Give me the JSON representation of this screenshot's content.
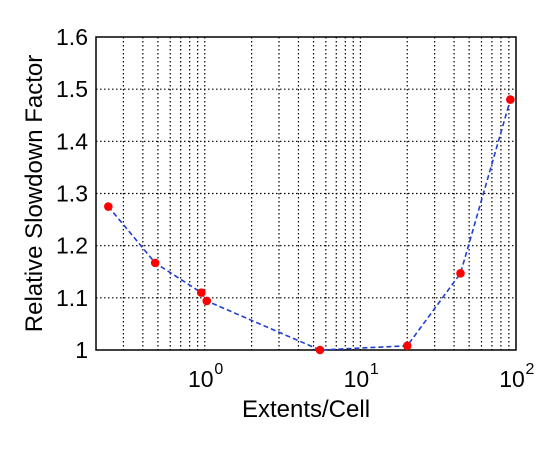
{
  "chart_data": {
    "type": "line",
    "xscale": "log",
    "xlim": [
      0.2,
      100
    ],
    "ylim": [
      1,
      1.6
    ],
    "grid": true,
    "xlabel": "Extents/Cell",
    "ylabel": "Relative Slowdown Factor",
    "xticks": [
      {
        "value": 1,
        "label": "10",
        "exp": "0"
      },
      {
        "value": 10,
        "label": "10",
        "exp": "1"
      },
      {
        "value": 100,
        "label": "10",
        "exp": "2"
      }
    ],
    "yticks": [
      "1",
      "1.1",
      "1.2",
      "1.3",
      "1.4",
      "1.5",
      "1.6"
    ],
    "series": [
      {
        "x": [
          0.24,
          0.48,
          0.95,
          1.03,
          5.5,
          20,
          44,
          92
        ],
        "y": [
          1.275,
          1.167,
          1.11,
          1.094,
          1.0,
          1.008,
          1.147,
          1.48
        ],
        "line_color": "#1f3fd6",
        "line_style": "dashed",
        "marker_color": "#ff0000"
      }
    ]
  }
}
